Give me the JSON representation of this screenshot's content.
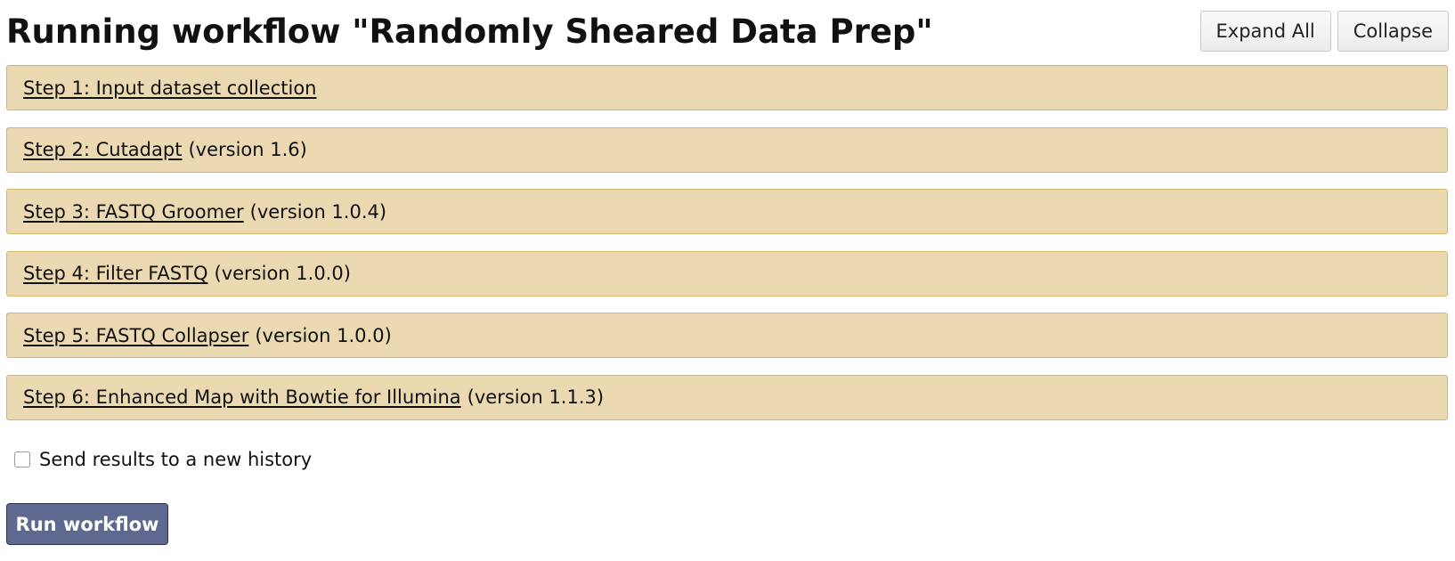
{
  "header": {
    "title": "Running workflow \"Randomly Sheared Data Prep\"",
    "expand_all_label": "Expand All",
    "collapse_label": "Collapse"
  },
  "steps": [
    {
      "link": "Step 1: Input dataset collection",
      "version": ""
    },
    {
      "link": "Step 2: Cutadapt",
      "version": "(version 1.6)"
    },
    {
      "link": "Step 3: FASTQ Groomer",
      "version": "(version 1.0.4)"
    },
    {
      "link": "Step 4: Filter FASTQ",
      "version": "(version 1.0.0)"
    },
    {
      "link": "Step 5: FASTQ Collapser",
      "version": "(version 1.0.0)"
    },
    {
      "link": "Step 6: Enhanced Map with Bowtie for Illumina",
      "version": "(version 1.1.3)"
    }
  ],
  "options": {
    "new_history_label": "Send results to a new history",
    "new_history_checked": false
  },
  "actions": {
    "run_label": "Run workflow"
  },
  "colors": {
    "step_background": "#ebd9b2",
    "step_border": "#d7b567",
    "run_button": "#5f6990"
  }
}
